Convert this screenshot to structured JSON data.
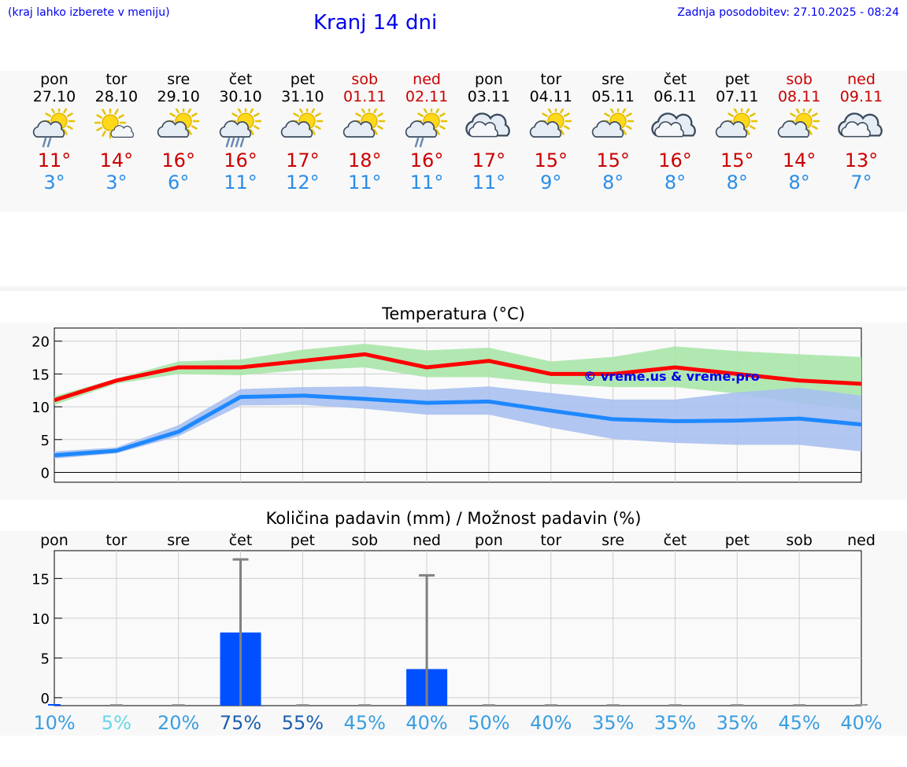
{
  "header": {
    "menu_hint": "(kraj lahko izberete v meniju)",
    "title": "Kranj 14 dni",
    "last_update": "Zadnja posodobitev: 27.10.2025 - 08:24"
  },
  "days": [
    {
      "name": "pon",
      "date": "27.10",
      "icon": "sun-cloud-rain-icon",
      "tmax": "11°",
      "tmin": "3°",
      "weekend": false
    },
    {
      "name": "tor",
      "date": "28.10",
      "icon": "sun-small-cloud-icon",
      "tmax": "14°",
      "tmin": "3°",
      "weekend": false
    },
    {
      "name": "sre",
      "date": "29.10",
      "icon": "partly-cloudy-icon",
      "tmax": "16°",
      "tmin": "6°",
      "weekend": false
    },
    {
      "name": "čet",
      "date": "30.10",
      "icon": "sun-cloud-heavy-rain-icon",
      "tmax": "16°",
      "tmin": "11°",
      "weekend": false
    },
    {
      "name": "pet",
      "date": "31.10",
      "icon": "partly-cloudy-icon",
      "tmax": "17°",
      "tmin": "12°",
      "weekend": false
    },
    {
      "name": "sob",
      "date": "01.11",
      "icon": "partly-cloudy-icon",
      "tmax": "18°",
      "tmin": "11°",
      "weekend": true
    },
    {
      "name": "ned",
      "date": "02.11",
      "icon": "sun-cloud-rain-icon",
      "tmax": "16°",
      "tmin": "11°",
      "weekend": true
    },
    {
      "name": "pon",
      "date": "03.11",
      "icon": "cloudy-icon",
      "tmax": "17°",
      "tmin": "11°",
      "weekend": false
    },
    {
      "name": "tor",
      "date": "04.11",
      "icon": "partly-cloudy-icon",
      "tmax": "15°",
      "tmin": "9°",
      "weekend": false
    },
    {
      "name": "sre",
      "date": "05.11",
      "icon": "partly-cloudy-icon",
      "tmax": "15°",
      "tmin": "8°",
      "weekend": false
    },
    {
      "name": "čet",
      "date": "06.11",
      "icon": "cloudy-icon",
      "tmax": "16°",
      "tmin": "8°",
      "weekend": false
    },
    {
      "name": "pet",
      "date": "07.11",
      "icon": "partly-cloudy-icon",
      "tmax": "15°",
      "tmin": "8°",
      "weekend": false
    },
    {
      "name": "sob",
      "date": "08.11",
      "icon": "partly-cloudy-icon",
      "tmax": "14°",
      "tmin": "8°",
      "weekend": true
    },
    {
      "name": "ned",
      "date": "09.11",
      "icon": "cloudy-icon",
      "tmax": "13°",
      "tmin": "7°",
      "weekend": true
    }
  ],
  "colors": {
    "max": "#ff0000",
    "min": "#1e88ff",
    "max_band": "#a8e6a8",
    "min_band": "#a8c0f0",
    "bar": "#0050ff",
    "err": "#808080",
    "weekend": "#cc0000",
    "link": "#0000ee"
  },
  "chart_data": [
    {
      "type": "line",
      "title": "Temperatura (°C)",
      "watermark": "© vreme.us & vreme.pro",
      "ylim": [
        -1.5,
        22
      ],
      "yticks": [
        0,
        5,
        10,
        15,
        20
      ],
      "grid": true,
      "x": [
        0,
        1,
        2,
        3,
        4,
        5,
        6,
        7,
        8,
        9,
        10,
        11,
        12,
        13
      ],
      "series": [
        {
          "key": "max",
          "values": [
            11,
            14,
            16,
            16,
            17,
            18,
            16,
            17,
            15,
            15,
            16,
            15,
            14,
            13.5
          ],
          "band_low": [
            10.3,
            13.5,
            15,
            14.8,
            15.6,
            16,
            14.5,
            14.5,
            13.5,
            13,
            13,
            12,
            10.5,
            9.5
          ],
          "band_high": [
            11.6,
            14.3,
            16.9,
            17.2,
            18.7,
            19.6,
            18.6,
            19,
            16.9,
            17.6,
            19.2,
            18.5,
            18,
            17.6
          ]
        },
        {
          "key": "min",
          "values": [
            2.6,
            3.3,
            6.2,
            11.5,
            11.7,
            11.2,
            10.6,
            10.8,
            9.4,
            8.1,
            7.8,
            7.9,
            8.2,
            7.3
          ],
          "band_low": [
            2.1,
            2.9,
            5.5,
            10.2,
            10.3,
            9.7,
            8.8,
            8.8,
            6.8,
            5.1,
            4.5,
            4.2,
            4.2,
            3.2
          ],
          "band_high": [
            3.2,
            3.8,
            7.2,
            12.7,
            13,
            13.1,
            12.6,
            13.1,
            12.1,
            11.1,
            11.1,
            12.2,
            12.9,
            11.7
          ]
        }
      ]
    },
    {
      "type": "bar",
      "title": "Količina padavin (mm) / Možnost padavin (%)",
      "ylim": [
        -1,
        18.5
      ],
      "yticks": [
        0,
        5,
        10,
        15
      ],
      "grid": true,
      "categories": [
        "pon",
        "tor",
        "sre",
        "čet",
        "pet",
        "sob",
        "ned",
        "pon",
        "tor",
        "sre",
        "čet",
        "pet",
        "sob",
        "ned"
      ],
      "values": [
        0,
        0,
        0,
        8.2,
        0,
        0,
        3.6,
        0,
        0,
        0,
        0,
        0,
        0,
        0
      ],
      "error_high": [
        0,
        0,
        0,
        17.4,
        0,
        0,
        15.4,
        0,
        0,
        0,
        0,
        0,
        0,
        0
      ],
      "probability": [
        "10%",
        "5%",
        "20%",
        "75%",
        "55%",
        "45%",
        "40%",
        "50%",
        "40%",
        "35%",
        "35%",
        "35%",
        "45%",
        "40%"
      ],
      "probability_colors": [
        "#3a9ee0",
        "#66d6e8",
        "#3a9ee0",
        "#1a5fb0",
        "#1a5fb0",
        "#3a9ee0",
        "#3a9ee0",
        "#3a9ee0",
        "#3a9ee0",
        "#3a9ee0",
        "#3a9ee0",
        "#3a9ee0",
        "#3a9ee0",
        "#3a9ee0"
      ]
    }
  ]
}
